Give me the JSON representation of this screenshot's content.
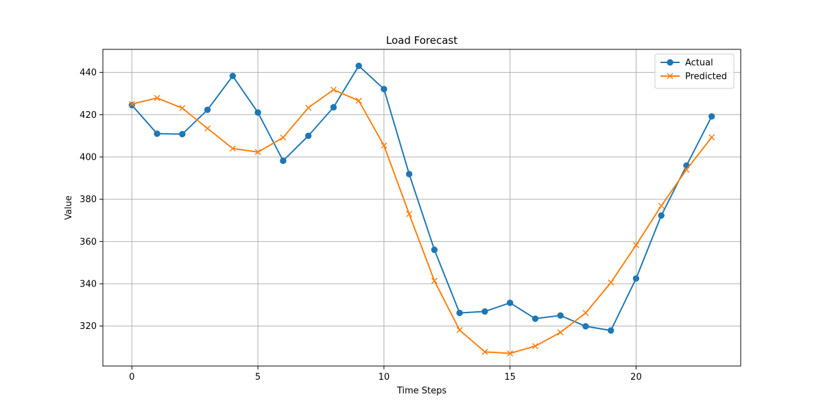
{
  "chart_data": {
    "type": "line",
    "title": "Load Forecast",
    "xlabel": "Time Steps",
    "ylabel": "Value",
    "xlim": [
      -1.15,
      24.15
    ],
    "ylim": [
      301.1,
      450.9
    ],
    "xticks": [
      0,
      5,
      10,
      15,
      20
    ],
    "yticks": [
      320,
      340,
      360,
      380,
      400,
      420,
      440
    ],
    "grid": true,
    "legend_position": "top-right",
    "x": [
      0,
      1,
      2,
      3,
      4,
      5,
      6,
      7,
      8,
      9,
      10,
      11,
      12,
      13,
      14,
      15,
      16,
      17,
      18,
      19,
      20,
      21,
      22,
      23
    ],
    "series": [
      {
        "name": "Actual",
        "color": "#1f77b4",
        "marker": "circle",
        "values": [
          424.5,
          411.0,
          410.8,
          422.3,
          438.3,
          421.0,
          398.2,
          410.0,
          423.5,
          443.1,
          432.1,
          391.9,
          356.1,
          326.2,
          326.9,
          331.0,
          323.5,
          325.0,
          319.9,
          317.9,
          342.5,
          372.3,
          395.9,
          419.2
        ]
      },
      {
        "name": "Predicted",
        "color": "#ff7f0e",
        "marker": "x",
        "values": [
          425.0,
          427.9,
          423.1,
          413.5,
          404.0,
          402.3,
          409.2,
          423.3,
          431.8,
          426.6,
          405.4,
          373.0,
          341.4,
          318.1,
          307.8,
          307.1,
          310.5,
          317.0,
          326.2,
          340.6,
          358.3,
          376.9,
          394.0,
          409.3
        ]
      }
    ]
  }
}
